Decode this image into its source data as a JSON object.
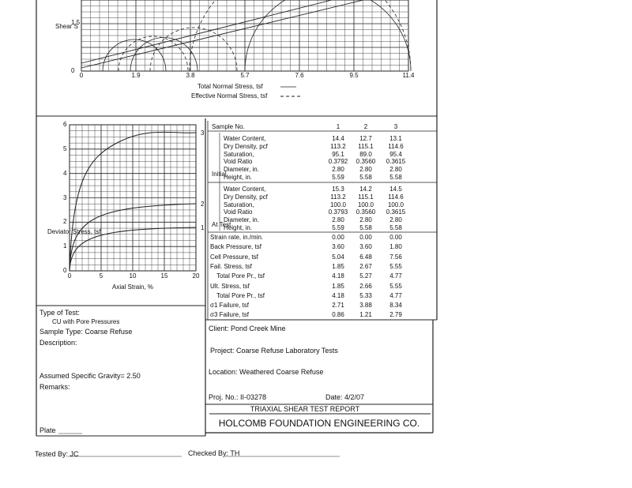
{
  "mohr_chart": {
    "y_label": "Shear S",
    "yticks": [
      "1.5",
      "0"
    ],
    "xticks": [
      "0",
      "1.9",
      "3.8",
      "5.7",
      "7.6",
      "9.5",
      "11.4"
    ],
    "legend": [
      "Total Normal Stress, tsf",
      "Effective Normal Stress, tsf"
    ]
  },
  "stress_strain_chart": {
    "y_label": "Deviator Stress, tsf",
    "x_label": "Axial Strain, %",
    "yticks": [
      "6",
      "5",
      "4",
      "3",
      "2",
      "1",
      "0"
    ],
    "xticks": [
      "0",
      "5",
      "10",
      "15",
      "20"
    ],
    "curve_labels": [
      "3",
      "2",
      "1"
    ]
  },
  "table": {
    "header": [
      "Sample No.",
      "1",
      "2",
      "3"
    ],
    "groups": [
      {
        "name": "Initial",
        "rows": [
          [
            "Water Content,",
            "14.4",
            "12.7",
            "13.1"
          ],
          [
            "Dry Density, pcf",
            "113.2",
            "115.1",
            "114.6"
          ],
          [
            "Saturation,",
            "95.1",
            "89.0",
            "95.4"
          ],
          [
            "Void Ratio",
            "0.3792",
            "0.3560",
            "0.3615"
          ],
          [
            "Diameter, in.",
            "2.80",
            "2.80",
            "2.80"
          ],
          [
            "Height, in.",
            "5.59",
            "5.58",
            "5.58"
          ]
        ]
      },
      {
        "name": "At Test",
        "rows": [
          [
            "Water Content,",
            "15.3",
            "14.2",
            "14.5"
          ],
          [
            "Dry Density, pcf",
            "113.2",
            "115.1",
            "114.6"
          ],
          [
            "Saturation,",
            "100.0",
            "100.0",
            "100.0"
          ],
          [
            "Void Ratio",
            "0.3793",
            "0.3560",
            "0.3615"
          ],
          [
            "Diameter, in.",
            "2.80",
            "2.80",
            "2.80"
          ],
          [
            "Height, in.",
            "5.59",
            "5.58",
            "5.58"
          ]
        ]
      }
    ],
    "rows": [
      [
        "Strain rate, in./min.",
        "0.00",
        "0.00",
        "0.00"
      ],
      [
        "Back Pressure, tsf",
        "3.60",
        "3.60",
        "1.80"
      ],
      [
        "Cell Pressure, tsf",
        "5.04",
        "6.48",
        "7.56"
      ],
      [
        "Fail. Stress, tsf",
        "1.85",
        "2.67",
        "5.55"
      ],
      [
        "Total Pore Pr., tsf",
        "4.18",
        "5.27",
        "4.77"
      ],
      [
        "Ult. Stress, tsf",
        "1.85",
        "2.66",
        "5.55"
      ],
      [
        "Total Pore Pr., tsf",
        "4.18",
        "5.33",
        "4.77"
      ],
      [
        "σ1 Failure, tsf",
        "2.71",
        "3.88",
        "8.34"
      ],
      [
        "σ3 Failure, tsf",
        "0.86",
        "1.21",
        "2.79"
      ]
    ]
  },
  "test_info": {
    "type_label": "Type of Test:",
    "type": "CU with Pore Pressures",
    "sample_type": "Sample Type: Coarse Refuse",
    "description": "Description:",
    "gravity": "Assumed Specific Gravity= 2.50",
    "remarks": "Remarks:",
    "plate": "Plate"
  },
  "report": {
    "client": "Client: Pond Creek Mine",
    "project": "Project: Coarse Refuse Laboratory Tests",
    "location": "Location: Weathered Coarse Refuse",
    "proj_no": "Proj. No.: II-03278",
    "date": "Date: 4/2/07",
    "title": "TRIAXIAL SHEAR TEST REPORT",
    "company": "HOLCOMB FOUNDATION ENGINEERING CO."
  },
  "footer": {
    "tested": "Tested By: JC",
    "checked": "Checked By: TH"
  }
}
